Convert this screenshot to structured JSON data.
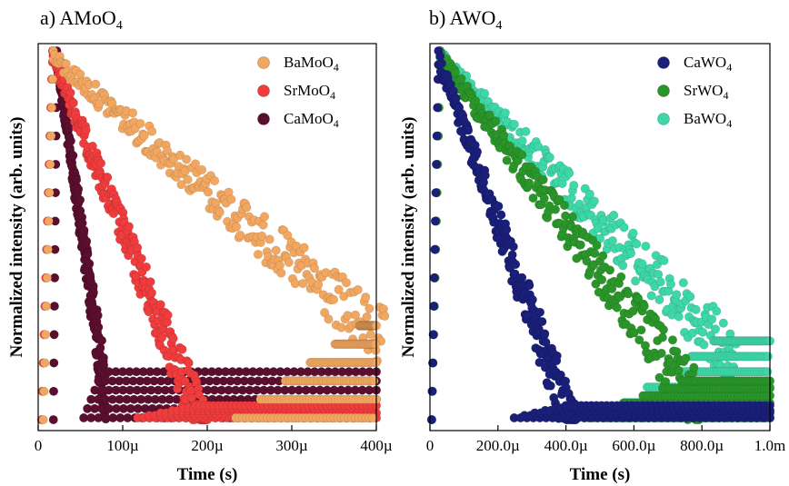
{
  "panels": [
    {
      "panel_title": "a) AMoO",
      "panel_title_sub": "4",
      "xlabel": "Time (s)",
      "ylabel": "Normalized intensity (arb. units)"
    },
    {
      "panel_title": "b) AWO",
      "panel_title_sub": "4",
      "xlabel": "Time (s)",
      "ylabel": "Normalized intensity (arb. units)"
    }
  ],
  "chart_data": [
    {
      "type": "scatter",
      "title": "a) AMoO4",
      "xlabel": "Time (s)",
      "ylabel": "Normalized intensity (arb. units)",
      "xlim": [
        0,
        0.0004
      ],
      "ylim": [
        0,
        1
      ],
      "xticks": [
        0,
        0.0001,
        0.0002,
        0.0003,
        0.0004
      ],
      "xtick_labels": [
        "0",
        "100µ",
        "200µ",
        "300µ",
        "400µ"
      ],
      "yticks_labeled": false,
      "legend_position": "top-right",
      "series": [
        {
          "name": "BaMoO",
          "name_sub": "4",
          "color": "#f2a760",
          "rise_start": 6e-06,
          "peak_time": 1.8e-05,
          "decay_end": 0.00041,
          "decay_end_level": 0.3
        },
        {
          "name": "SrMoO",
          "name_sub": "4",
          "color": "#f03c3c",
          "rise_start": 4e-06,
          "peak_time": 1.7e-05,
          "decay_end": 0.0002,
          "decay_end_level": 0.04
        },
        {
          "name": "CaMoO",
          "name_sub": "4",
          "color": "#5b0f2e",
          "rise_start": 1.8e-05,
          "peak_time": 2.2e-05,
          "decay_end": 8e-05,
          "decay_end_level": 0.15
        }
      ]
    },
    {
      "type": "scatter",
      "title": "b) AWO4",
      "xlabel": "Time (s)",
      "ylabel": "Normalized intensity (arb. units)",
      "xlim": [
        0,
        0.001
      ],
      "ylim": [
        0,
        1
      ],
      "xticks": [
        0,
        0.0002,
        0.0004,
        0.0006,
        0.0008,
        0.001
      ],
      "xtick_labels": [
        "0",
        "200.0µ",
        "400.0µ",
        "600.0µ",
        "800.0µ",
        "1.0m"
      ],
      "yticks_labeled": false,
      "legend_position": "top-right",
      "series": [
        {
          "name": "CaWO",
          "name_sub": "4",
          "color": "#1a1f7a",
          "rise_start": 5e-06,
          "peak_time": 2.5e-05,
          "decay_end": 0.00043,
          "decay_end_level": 0.04
        },
        {
          "name": "SrWO",
          "name_sub": "4",
          "color": "#2a962a",
          "rise_start": 5e-06,
          "peak_time": 3e-05,
          "decay_end": 0.0008,
          "decay_end_level": 0.12
        },
        {
          "name": "BaWO",
          "name_sub": "4",
          "color": "#3ed8a8",
          "rise_start": 5e-06,
          "peak_time": 3e-05,
          "decay_end": 0.0009,
          "decay_end_level": 0.25
        }
      ]
    }
  ]
}
